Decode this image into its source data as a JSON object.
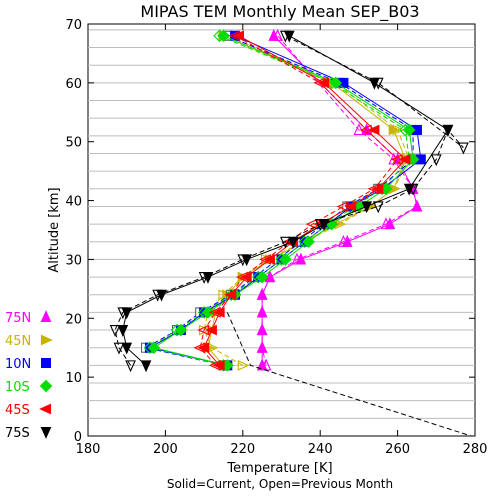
{
  "chart_data": {
    "type": "line",
    "title": "MIPAS TEM Monthly Mean SEP_B03",
    "xlabel": "Temperature [K]",
    "ylabel": "Altitude [km]",
    "subtitle": "Solid=Current, Open=Previous Month",
    "xlim": [
      180,
      280
    ],
    "ylim": [
      0,
      70
    ],
    "xticks": [
      "180",
      "200",
      "220",
      "240",
      "260",
      "280"
    ],
    "yticks": [
      "0",
      "10",
      "20",
      "30",
      "40",
      "50",
      "60",
      "70"
    ],
    "grid": "horizontal lines every 3 km",
    "legend_position": "left",
    "series": [
      {
        "name": "75N",
        "color": "#ff00ff",
        "marker": "triangle-up",
        "current": {
          "x": [
            225,
            225,
            225,
            225,
            225,
            227,
            235,
            247,
            258,
            265,
            264,
            260,
            252,
            228
          ],
          "y": [
            12,
            15,
            18,
            21,
            24,
            27,
            30,
            33,
            36,
            39,
            42,
            47,
            52,
            68
          ]
        },
        "previous": {
          "x": [
            226,
            225,
            225,
            225,
            225,
            227,
            234,
            246,
            257,
            265,
            264,
            259,
            250,
            229
          ],
          "y": [
            12,
            15,
            18,
            21,
            24,
            27,
            30,
            33,
            36,
            39,
            42,
            47,
            52,
            68
          ]
        }
      },
      {
        "name": "45N",
        "color": "#c8b400",
        "marker": "triangle-right",
        "current": {
          "x": [
            215,
            211,
            212,
            213,
            216,
            220,
            227,
            236,
            244,
            253,
            259,
            262,
            259,
            243,
            215
          ],
          "y": [
            12,
            15,
            18,
            21,
            24,
            27,
            30,
            33,
            36,
            39,
            42,
            47,
            52,
            60,
            68
          ]
        },
        "previous": {
          "x": [
            220,
            212,
            210,
            211,
            215,
            220,
            226,
            236,
            245,
            253,
            259,
            263,
            260,
            244,
            216
          ],
          "y": [
            12,
            15,
            18,
            21,
            24,
            27,
            30,
            33,
            36,
            39,
            42,
            47,
            52,
            60,
            68
          ]
        }
      },
      {
        "name": "10N",
        "color": "#0000ff",
        "marker": "square",
        "current": {
          "x": [
            216,
            196,
            204,
            210,
            218,
            224,
            230,
            236,
            242,
            248,
            256,
            266,
            265,
            246,
            218
          ],
          "y": [
            12,
            15,
            18,
            21,
            24,
            27,
            30,
            33,
            36,
            39,
            42,
            47,
            52,
            60,
            68
          ]
        },
        "previous": {
          "x": [
            215,
            195,
            203,
            209,
            217,
            223,
            229,
            235,
            241,
            247,
            255,
            264,
            264,
            245,
            216
          ],
          "y": [
            12,
            15,
            18,
            21,
            24,
            27,
            30,
            33,
            36,
            39,
            42,
            47,
            52,
            60,
            68
          ]
        }
      },
      {
        "name": "10S",
        "color": "#00dd00",
        "marker": "diamond",
        "current": {
          "x": [
            216,
            197,
            204,
            211,
            218,
            225,
            231,
            237,
            243,
            250,
            257,
            264,
            263,
            244,
            215
          ],
          "y": [
            12,
            15,
            18,
            21,
            24,
            27,
            30,
            33,
            36,
            39,
            42,
            47,
            52,
            60,
            68
          ]
        },
        "previous": {
          "x": [
            215,
            196,
            203,
            210,
            217,
            224,
            230,
            236,
            242,
            249,
            256,
            263,
            262,
            243,
            214
          ],
          "y": [
            12,
            15,
            18,
            21,
            24,
            27,
            30,
            33,
            36,
            39,
            42,
            47,
            52,
            60,
            68
          ]
        }
      },
      {
        "name": "45S",
        "color": "#ff0000",
        "marker": "triangle-left",
        "current": {
          "x": [
            214,
            210,
            212,
            214,
            217,
            221,
            227,
            233,
            240,
            248,
            255,
            262,
            254,
            241,
            219
          ],
          "y": [
            12,
            15,
            18,
            21,
            24,
            27,
            30,
            33,
            36,
            39,
            42,
            47,
            52,
            60,
            68
          ]
        },
        "previous": {
          "x": [
            213,
            209,
            210,
            213,
            217,
            220,
            226,
            232,
            238,
            246,
            254,
            260,
            252,
            240,
            218
          ],
          "y": [
            12,
            15,
            18,
            21,
            24,
            27,
            30,
            33,
            36,
            39,
            42,
            47,
            52,
            60,
            68
          ]
        }
      },
      {
        "name": "75S",
        "color": "#000000",
        "marker": "triangle-down",
        "current": {
          "x": [
            195,
            190,
            189,
            190,
            199,
            211,
            221,
            233,
            241,
            252,
            263,
            273,
            254,
            232
          ],
          "y": [
            12,
            15,
            18,
            21,
            24,
            27,
            30,
            33,
            36,
            39,
            42,
            52,
            60,
            68
          ]
        },
        "previous": {
          "x": [
            191,
            188,
            187,
            189,
            198,
            210,
            220,
            231,
            240,
            255,
            264,
            270,
            273,
            277,
            255,
            231
          ],
          "y": [
            12,
            15,
            18,
            21,
            24,
            27,
            30,
            33,
            36,
            39,
            42,
            47,
            52,
            49,
            60,
            68
          ]
        }
      }
    ],
    "previous_75S_dashed_extension": {
      "x": [
        216,
        222,
        279
      ],
      "y": [
        21,
        12,
        0
      ]
    }
  }
}
